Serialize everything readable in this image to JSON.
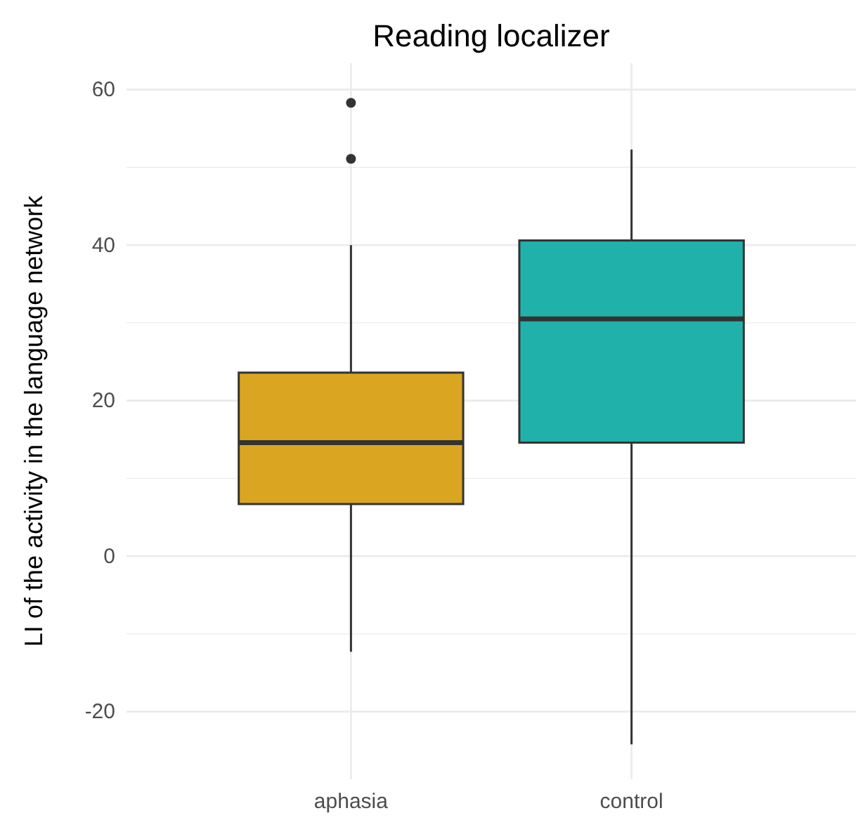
{
  "chart_data": {
    "type": "box",
    "title": "Reading localizer",
    "ylabel": "LI of the activity in the language network",
    "categories": [
      "aphasia",
      "control"
    ],
    "colors": [
      "#daa520",
      "#20b2aa"
    ],
    "boxes": [
      {
        "low": -12.3,
        "q1": 6.7,
        "median": 14.6,
        "q3": 23.6,
        "high": 40,
        "outliers": [
          58.3,
          51.1
        ]
      },
      {
        "low": -24.2,
        "q1": 14.6,
        "median": 30.5,
        "q3": 40.6,
        "high": 52.3
      }
    ],
    "ylim": [
      -28.7,
      63.4
    ],
    "yticks": [
      -20,
      {
        "value": -10,
        "label": null
      },
      0,
      {
        "value": 10,
        "label": null
      },
      20,
      {
        "value": 30,
        "label": null
      },
      40,
      {
        "value": 50,
        "label": null
      },
      60
    ],
    "grid": true
  }
}
